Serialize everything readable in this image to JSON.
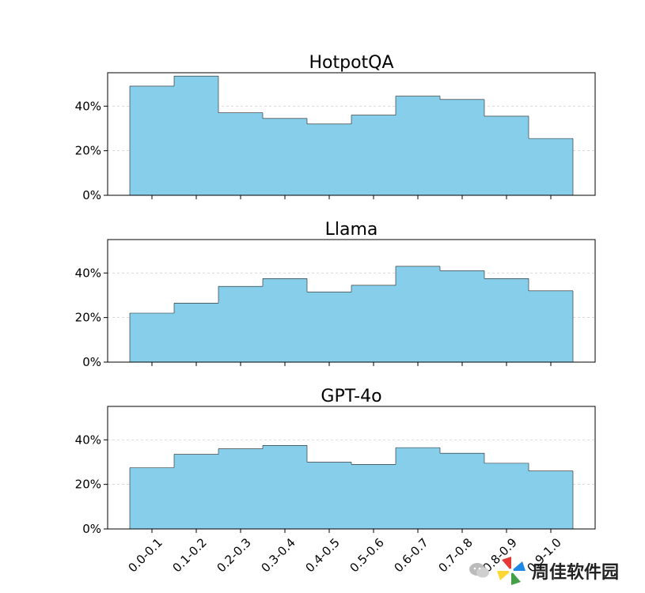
{
  "chart_data": {
    "type": "bar",
    "categories": [
      "0.0-0.1",
      "0.1-0.2",
      "0.2-0.3",
      "0.3-0.4",
      "0.4-0.5",
      "0.5-0.6",
      "0.6-0.7",
      "0.7-0.8",
      "0.8-0.9",
      "0.9-1.0"
    ],
    "ylim": [
      0,
      55
    ],
    "yticks": [
      0,
      20,
      40
    ],
    "ytick_labels": [
      "0%",
      "20%",
      "40%"
    ],
    "grid": "y-dashed",
    "bar_color": "#87CEEB",
    "panels": [
      {
        "title": "HotpotQA",
        "values": [
          49,
          53.5,
          37,
          34.5,
          32,
          36,
          44.5,
          43,
          35.5,
          25.5
        ]
      },
      {
        "title": "Llama",
        "values": [
          22,
          26.5,
          34,
          37.5,
          31.5,
          34.5,
          43,
          41,
          37.5,
          32
        ]
      },
      {
        "title": "GPT-4o",
        "values": [
          27.5,
          33.5,
          36,
          37.5,
          30,
          29,
          36.5,
          34,
          29.5,
          26
        ]
      }
    ]
  },
  "watermark": {
    "text": "周佳软件园"
  }
}
